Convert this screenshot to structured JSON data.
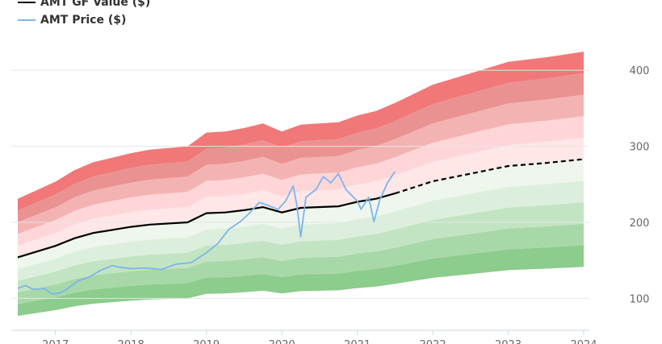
{
  "chart_data": {
    "type": "line",
    "legend": [
      {
        "name": "AMT GF Value ($)",
        "color": "#000000"
      },
      {
        "name": "AMT Price ($)",
        "color": "#7cb5ec"
      }
    ],
    "legend_position": "top-left",
    "x_ticks": [
      "2017",
      "2018",
      "2019",
      "2020",
      "2021",
      "2022",
      "2023",
      "2024"
    ],
    "y_ticks": [
      100,
      200,
      300,
      400
    ],
    "xlim": [
      2016.5,
      2024.0
    ],
    "ylim": [
      58,
      450
    ],
    "y_axis_side": "right",
    "grid": true,
    "series": [
      {
        "name": "AMT GF Value ($)",
        "style": "solid-then-dashed",
        "dash_from_x": 2021.5,
        "points": [
          [
            2016.5,
            154
          ],
          [
            2017.0,
            169
          ],
          [
            2017.25,
            179
          ],
          [
            2017.5,
            186
          ],
          [
            2018.0,
            194
          ],
          [
            2018.25,
            197
          ],
          [
            2018.75,
            200
          ],
          [
            2019.0,
            212
          ],
          [
            2019.25,
            213
          ],
          [
            2019.5,
            216
          ],
          [
            2019.75,
            220
          ],
          [
            2020.0,
            213
          ],
          [
            2020.25,
            219
          ],
          [
            2020.75,
            221
          ],
          [
            2021.0,
            227
          ],
          [
            2021.25,
            231
          ],
          [
            2021.5,
            238
          ],
          [
            2022.0,
            254
          ],
          [
            2022.5,
            264
          ],
          [
            2023.0,
            274
          ],
          [
            2023.5,
            278
          ],
          [
            2024.0,
            283
          ]
        ]
      },
      {
        "name": "AMT Price ($)",
        "points": [
          [
            2016.5,
            113
          ],
          [
            2016.6,
            117
          ],
          [
            2016.7,
            112
          ],
          [
            2016.85,
            113
          ],
          [
            2016.95,
            106
          ],
          [
            2017.05,
            107
          ],
          [
            2017.15,
            112
          ],
          [
            2017.3,
            123
          ],
          [
            2017.45,
            128
          ],
          [
            2017.6,
            137
          ],
          [
            2017.75,
            143
          ],
          [
            2017.85,
            141
          ],
          [
            2018.0,
            139
          ],
          [
            2018.2,
            140
          ],
          [
            2018.4,
            138
          ],
          [
            2018.6,
            145
          ],
          [
            2018.8,
            147
          ],
          [
            2019.0,
            160
          ],
          [
            2019.15,
            172
          ],
          [
            2019.3,
            191
          ],
          [
            2019.45,
            201
          ],
          [
            2019.55,
            210
          ],
          [
            2019.7,
            226
          ],
          [
            2019.8,
            223
          ],
          [
            2019.95,
            217
          ],
          [
            2020.05,
            228
          ],
          [
            2020.15,
            248
          ],
          [
            2020.2,
            222
          ],
          [
            2020.25,
            181
          ],
          [
            2020.32,
            233
          ],
          [
            2020.45,
            243
          ],
          [
            2020.55,
            260
          ],
          [
            2020.65,
            252
          ],
          [
            2020.75,
            264
          ],
          [
            2020.85,
            243
          ],
          [
            2021.0,
            228
          ],
          [
            2021.05,
            217
          ],
          [
            2021.15,
            233
          ],
          [
            2021.22,
            201
          ],
          [
            2021.3,
            230
          ],
          [
            2021.4,
            252
          ],
          [
            2021.5,
            267
          ]
        ]
      }
    ],
    "bands": {
      "upper_multipliers": [
        1.1,
        1.2,
        1.3,
        1.4,
        1.5
      ],
      "lower_multipliers": [
        0.9,
        0.8,
        0.7,
        0.6,
        0.5
      ],
      "upper_colors": [
        "#ffe7e8",
        "#ffd6d8",
        "#f4b3b3",
        "#ea9292",
        "#f07878"
      ],
      "lower_colors": [
        "#eef6ee",
        "#dcefdc",
        "#c3e4c3",
        "#a8d8a8",
        "#8ccc8c"
      ]
    }
  }
}
